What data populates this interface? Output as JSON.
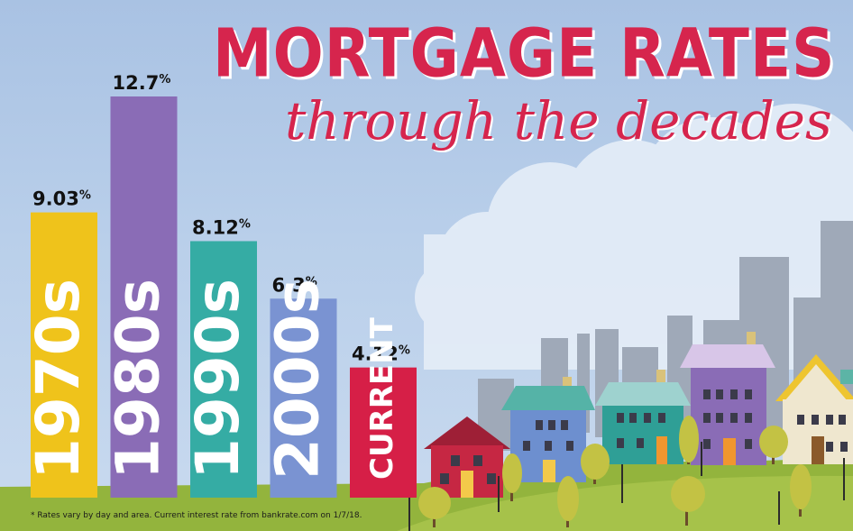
{
  "header": {
    "title": "MORTGAGE RATES",
    "subtitle": "through the decades"
  },
  "footnote": "* Rates vary by day and area. Current interest rate from bankrate.com on 1/7/18.",
  "colors": {
    "title": "#d6254d",
    "bar_1970s": "#efc31b",
    "bar_1980s": "#8a6cb6",
    "bar_1990s": "#35aca4",
    "bar_2000s": "#7a93d2",
    "bar_current": "#d61f47"
  },
  "chart_data": {
    "type": "bar",
    "title": "MORTGAGE RATES through the decades",
    "categories": [
      "1970s",
      "1980s",
      "1990s",
      "2000s",
      "CURRENT"
    ],
    "values": [
      9.03,
      12.7,
      8.12,
      6.3,
      4.12
    ],
    "value_labels": [
      "9.03",
      "12.7",
      "8.12",
      "6.3",
      "4.12"
    ],
    "unit": "%",
    "xlabel": "",
    "ylabel": "",
    "ylim": [
      0,
      12.7
    ],
    "grid": false,
    "legend": "none"
  }
}
